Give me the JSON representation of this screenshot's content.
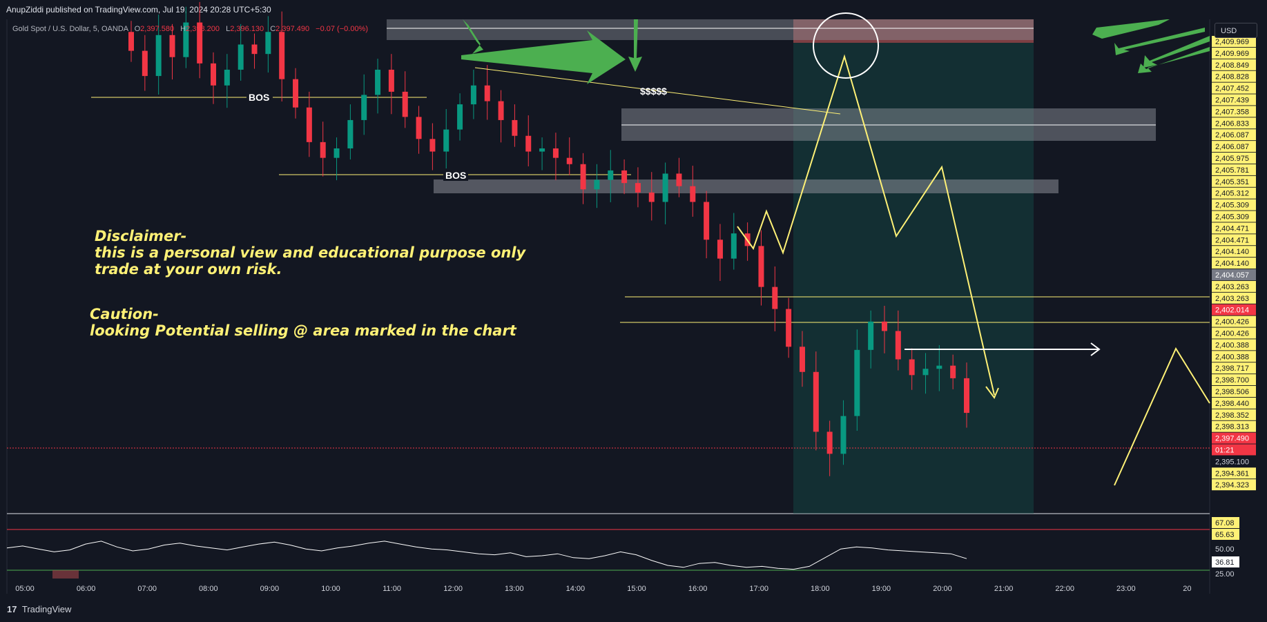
{
  "header": {
    "published_text": "AnupZiddi published on TradingView.com, Jul 19, 2024 20:28 UTC+5:30",
    "symbol": "Gold Spot / U.S. Dollar, 5, OANDA",
    "ohlc": {
      "o_label": "O",
      "o": "2,397.580",
      "h_label": "H",
      "h": "2,398.200",
      "l_label": "L",
      "l": "2,396.130",
      "c_label": "C",
      "c": "2,397.490",
      "change": "−0.07 (−0.00%)"
    }
  },
  "currency_button": "USD",
  "footer": {
    "logo_text": "TradingView"
  },
  "annotations": {
    "bos1": "BOS",
    "bos2": "BOS",
    "dollars": "$$$$$",
    "disclaimer_title": "Disclaimer-",
    "disclaimer_line1": "this is a personal view and educational purpose only",
    "disclaimer_line2": "trade at your own risk.",
    "caution_title": "Caution-",
    "caution_line1": "looking Potential selling @ area marked in the chart"
  },
  "price_axis": {
    "labels": [
      "2,409.969",
      "2,409.969",
      "2,408.849",
      "2,408.828",
      "2,407.452",
      "2,407.439",
      "2,407.358",
      "2,406.833",
      "2,406.087",
      "2,406.087",
      "2,405.975",
      "2,405.781",
      "2,405.351",
      "2,405.312",
      "2,405.309",
      "2,405.309",
      "2,404.471",
      "2,404.471",
      "2,404.140",
      "2,404.140",
      "2,404.057",
      "2,403.263",
      "2,403.263",
      "2,402.014",
      "2,400.426",
      "2,400.426",
      "2,400.388",
      "2,400.388",
      "2,398.717",
      "2,398.700",
      "2,398.506",
      "2,398.440",
      "2,398.352",
      "2,398.313",
      "2,397.490",
      "01:21",
      "2,395.100",
      "2,394.361",
      "2,394.323"
    ],
    "current_price": "2,397.490",
    "countdown": "01:21",
    "grey_label": "2,404.057",
    "red_label": "2,402.014",
    "plain_label": "2,395.100",
    "colors": {
      "yellow": "#fff176",
      "grey": "#787b86",
      "red": "#f23645"
    }
  },
  "rsi": {
    "labels": [
      "67.08",
      "65.63",
      "50.00",
      "36.81",
      "25.00"
    ],
    "current": "36.81"
  },
  "time_axis": [
    "05:00",
    "06:00",
    "07:00",
    "08:00",
    "09:00",
    "10:00",
    "11:00",
    "12:00",
    "13:00",
    "14:00",
    "15:00",
    "16:00",
    "17:00",
    "18:00",
    "19:00",
    "20:00",
    "21:00",
    "22:00",
    "23:00",
    "20"
  ],
  "chart_data": {
    "type": "candlestick",
    "symbol": "Gold Spot / U.S. Dollar",
    "timeframe": "5",
    "x_range": [
      "05:00",
      "20"
    ],
    "y_range": [
      2394.3,
      2410.0
    ],
    "last_price": 2397.49,
    "candles_approx_close": [
      2409.0,
      2408.2,
      2409.5,
      2408.8,
      2409.9,
      2408.6,
      2407.9,
      2408.4,
      2409.2,
      2408.9,
      2409.6,
      2408.1,
      2407.2,
      2406.1,
      2405.6,
      2405.9,
      2406.8,
      2407.6,
      2408.4,
      2407.7,
      2406.9,
      2406.2,
      2405.8,
      2406.5,
      2407.3,
      2407.9,
      2407.4,
      2406.8,
      2406.3,
      2405.8,
      2405.9,
      2405.6,
      2405.4,
      2404.6,
      2404.9,
      2405.2,
      2404.8,
      2404.5,
      2404.2,
      2405.1,
      2404.7,
      2404.2,
      2403.0,
      2402.4,
      2403.2,
      2402.8,
      2401.5,
      2400.8,
      2399.6,
      2398.8,
      2396.9,
      2396.2,
      2397.4,
      2399.5,
      2400.4,
      2400.1,
      2399.2,
      2398.7,
      2398.9,
      2399.0,
      2398.6,
      2397.5
    ],
    "rsi_values": [
      48,
      50,
      47,
      44,
      46,
      52,
      55,
      49,
      45,
      47,
      51,
      53,
      50,
      48,
      46,
      49,
      52,
      54,
      51,
      47,
      45,
      48,
      50,
      53,
      55,
      52,
      49,
      47,
      46,
      44,
      42,
      41,
      43,
      39,
      40,
      42,
      38,
      37,
      40,
      44,
      41,
      35,
      30,
      28,
      32,
      33,
      30,
      28,
      29,
      27,
      26,
      29,
      38,
      47,
      49,
      48,
      46,
      45,
      44,
      43,
      42,
      37
    ]
  }
}
